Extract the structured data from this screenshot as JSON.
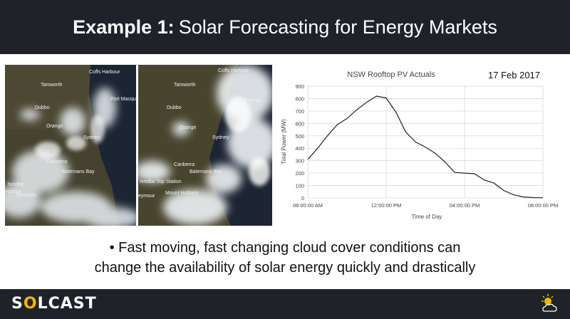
{
  "slide": {
    "title_bold": "Example 1:",
    "title_rest": "Solar Forecasting for Energy Markets",
    "bullet_line1": "• Fast moving, fast changing cloud cover conditions can",
    "bullet_line2": "change the availability of solar energy quickly and drastically",
    "logo_pre": "S",
    "logo_o": "O",
    "logo_post": "LCAST",
    "weather_icon": "sun-cloud-icon"
  },
  "map_labels": {
    "left": [
      "Coffs Harbour",
      "Tamworth",
      "Port Macqu",
      "Dubbo",
      "Orange",
      "Sydney",
      "Canberra",
      "Batemans Bay",
      "hredbo",
      "Bombala",
      "eymour"
    ],
    "right": [
      "Coffs Harbour",
      "Tamworth",
      "Port Macq",
      "Dubbo",
      "Orange",
      "Canberra",
      "Batemans Bay",
      "hredbo Top Station",
      "Mount Hotham",
      "Sydney",
      "eymour"
    ]
  },
  "colors": {
    "bar": "#1f2329",
    "accent": "#f5b400",
    "line": "#222222",
    "grid": "#d9d9d9"
  },
  "chart_data": {
    "type": "line",
    "title": "NSW Rooftop PV Actuals",
    "annotation": "17 Feb 2017",
    "xlabel": "Time of Day",
    "ylabel": "Total Power (MW)",
    "ylim": [
      0,
      900
    ],
    "yticks": [
      "0",
      "100",
      "200",
      "300",
      "400",
      "500",
      "600",
      "700",
      "800",
      "900"
    ],
    "xlim": [
      8,
      20
    ],
    "xticks": [
      "08:00:00 AM",
      "12:00:00 PM",
      "04:00:00 PM",
      "08:00:00 PM"
    ],
    "grid": true,
    "series": [
      {
        "x": [
          8,
          8.5,
          9,
          9.5,
          10,
          10.5,
          11,
          11.5,
          12,
          12.5,
          13,
          13.5,
          14,
          14.5,
          15,
          15.5,
          16,
          16.5,
          17,
          17.5,
          18,
          18.5,
          19,
          19.5,
          20
        ],
        "y": [
          310,
          400,
          500,
          590,
          640,
          710,
          770,
          820,
          805,
          690,
          530,
          450,
          410,
          360,
          290,
          205,
          200,
          195,
          145,
          120,
          60,
          25,
          8,
          3,
          2
        ]
      }
    ]
  }
}
